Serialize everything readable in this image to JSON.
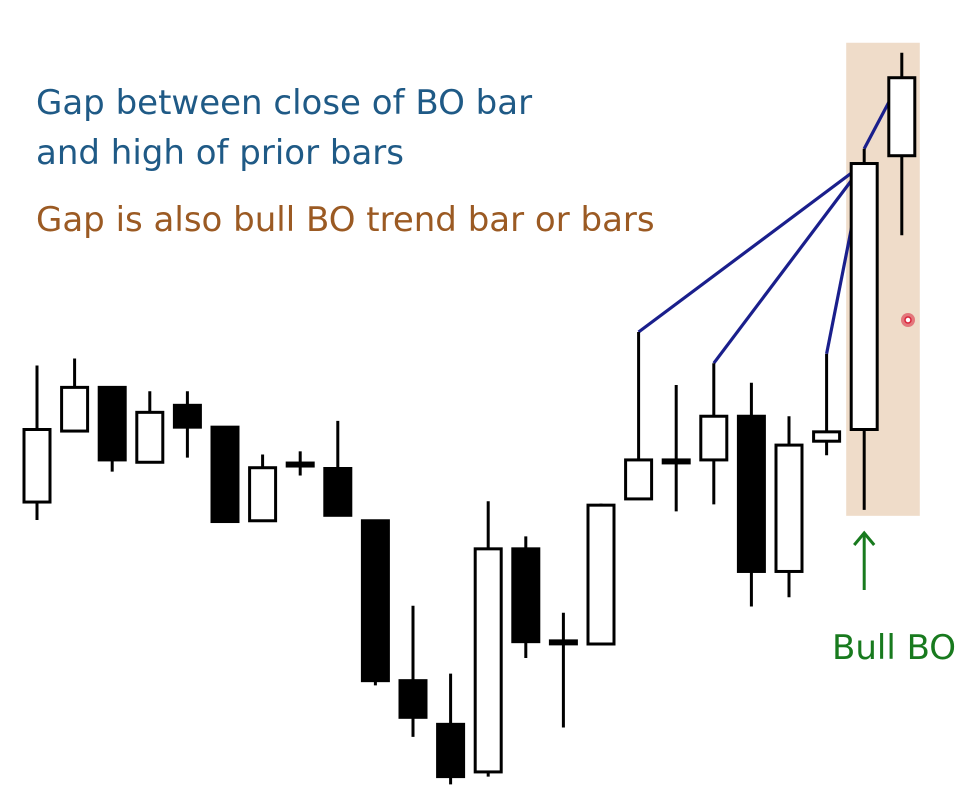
{
  "annotations": {
    "gap_text_1": "Gap between close of BO bar",
    "gap_text_2": "and high of prior bars",
    "gap_bars_text": "Gap is also bull BO trend bar or bars",
    "bull_bo_label": "Bull BO"
  },
  "colors": {
    "background": "#ffffff",
    "bull_body": "#ffffff",
    "bear_body": "#000000",
    "wick": "#000000",
    "gap_text": "#1f5a86",
    "gap_bars_text": "#9b5a23",
    "connector_line": "#1a1f8c",
    "highlight_band": "#efdcc9",
    "bull_bo_label": "#187a1e",
    "arrow": "#187a1e",
    "cursor_dot": "#d9233a"
  },
  "chart_data": {
    "type": "candlestick",
    "title": "",
    "xlabel": "",
    "ylabel": "",
    "axes_shown": false,
    "grid": false,
    "ylim": [
      0,
      100
    ],
    "bars": [
      {
        "o": 38.2,
        "h": 55.7,
        "l": 35.9,
        "c": 47.5
      },
      {
        "o": 47.3,
        "h": 56.6,
        "l": 47.3,
        "c": 52.9
      },
      {
        "o": 52.9,
        "h": 52.9,
        "l": 42.1,
        "c": 43.6
      },
      {
        "o": 43.3,
        "h": 52.4,
        "l": 43.3,
        "c": 49.7
      },
      {
        "o": 50.6,
        "h": 52.4,
        "l": 43.9,
        "c": 47.8
      },
      {
        "o": 47.8,
        "h": 47.8,
        "l": 35.7,
        "c": 35.7
      },
      {
        "o": 35.8,
        "h": 44.3,
        "l": 35.7,
        "c": 42.6
      },
      {
        "o": 43.2,
        "h": 44.7,
        "l": 41.6,
        "c": 43.2
      },
      {
        "o": 42.5,
        "h": 48.6,
        "l": 36.5,
        "c": 36.5
      },
      {
        "o": 35.8,
        "h": 35.8,
        "l": 14.7,
        "c": 15.3
      },
      {
        "o": 15.3,
        "h": 24.9,
        "l": 8.1,
        "c": 10.6
      },
      {
        "o": 9.7,
        "h": 16.2,
        "l": 2.0,
        "c": 3.0
      },
      {
        "o": 3.6,
        "h": 38.3,
        "l": 3.0,
        "c": 32.2
      },
      {
        "o": 32.2,
        "h": 33.8,
        "l": 18.2,
        "c": 20.3
      },
      {
        "o": 20.4,
        "h": 24.0,
        "l": 9.3,
        "c": 20.4
      },
      {
        "o": 20.0,
        "h": 38.0,
        "l": 20.0,
        "c": 37.8
      },
      {
        "o": 38.6,
        "h": 60.0,
        "l": 38.6,
        "c": 43.6
      },
      {
        "o": 43.6,
        "h": 53.2,
        "l": 37.0,
        "c": 43.6
      },
      {
        "o": 43.6,
        "h": 56.0,
        "l": 37.9,
        "c": 49.2
      },
      {
        "o": 49.2,
        "h": 53.5,
        "l": 24.8,
        "c": 29.3
      },
      {
        "o": 29.3,
        "h": 49.2,
        "l": 26.0,
        "c": 45.5
      },
      {
        "o": 46.0,
        "h": 57.2,
        "l": 44.2,
        "c": 47.2
      },
      {
        "o": 47.5,
        "h": 83.5,
        "l": 37.2,
        "c": 81.6
      },
      {
        "o": 82.6,
        "h": 95.8,
        "l": 72.4,
        "c": 92.6
      }
    ],
    "gap_connectors": [
      {
        "from_bar": 16,
        "to_bar": 22
      },
      {
        "from_bar": 18,
        "to_bar": 22
      },
      {
        "from_bar": 21,
        "to_bar": 22
      },
      {
        "from_bar": 22,
        "to_bar": 23
      }
    ],
    "highlight_bars": [
      22,
      23
    ],
    "bull_bo_bar": 22
  }
}
